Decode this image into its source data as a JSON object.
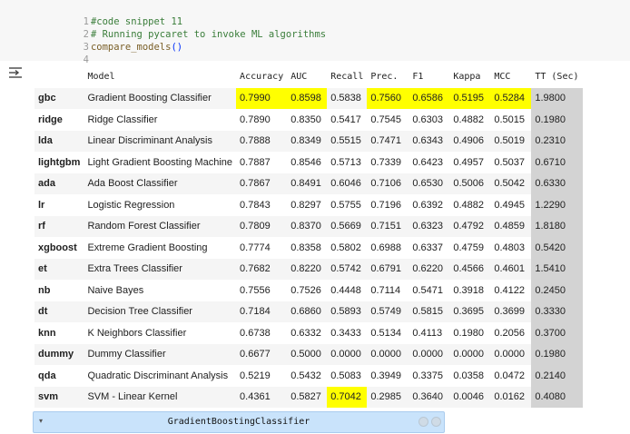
{
  "code": {
    "lines": [
      {
        "num": "1",
        "text": "#code snippet 11",
        "kind": "comment"
      },
      {
        "num": "2",
        "text": "# Running pycaret to invoke ML algorithms",
        "kind": "comment"
      },
      {
        "num": "3",
        "text_fn": "compare_models",
        "text_paren": "()",
        "kind": "call"
      },
      {
        "num": "4",
        "text": "",
        "kind": "empty"
      }
    ]
  },
  "output": {
    "icon": "output-expand-icon",
    "highlight_color": "#ffff00",
    "tt_column_color": "#d3d3d3"
  },
  "table": {
    "columns": [
      "",
      "Model",
      "Accuracy",
      "AUC",
      "Recall",
      "Prec.",
      "F1",
      "Kappa",
      "MCC",
      "TT (Sec)"
    ],
    "rows": [
      {
        "id": "gbc",
        "model": "Gradient Boosting Classifier",
        "accuracy": "0.7990",
        "auc": "0.8598",
        "recall": "0.5838",
        "prec": "0.7560",
        "f1": "0.6586",
        "kappa": "0.5195",
        "mcc": "0.5284",
        "tt": "1.9800"
      },
      {
        "id": "ridge",
        "model": "Ridge Classifier",
        "accuracy": "0.7890",
        "auc": "0.8350",
        "recall": "0.5417",
        "prec": "0.7545",
        "f1": "0.6303",
        "kappa": "0.4882",
        "mcc": "0.5015",
        "tt": "0.1980"
      },
      {
        "id": "lda",
        "model": "Linear Discriminant Analysis",
        "accuracy": "0.7888",
        "auc": "0.8349",
        "recall": "0.5515",
        "prec": "0.7471",
        "f1": "0.6343",
        "kappa": "0.4906",
        "mcc": "0.5019",
        "tt": "0.2310"
      },
      {
        "id": "lightgbm",
        "model": "Light Gradient Boosting Machine",
        "accuracy": "0.7887",
        "auc": "0.8546",
        "recall": "0.5713",
        "prec": "0.7339",
        "f1": "0.6423",
        "kappa": "0.4957",
        "mcc": "0.5037",
        "tt": "0.6710"
      },
      {
        "id": "ada",
        "model": "Ada Boost Classifier",
        "accuracy": "0.7867",
        "auc": "0.8491",
        "recall": "0.6046",
        "prec": "0.7106",
        "f1": "0.6530",
        "kappa": "0.5006",
        "mcc": "0.5042",
        "tt": "0.6330"
      },
      {
        "id": "lr",
        "model": "Logistic Regression",
        "accuracy": "0.7843",
        "auc": "0.8297",
        "recall": "0.5755",
        "prec": "0.7196",
        "f1": "0.6392",
        "kappa": "0.4882",
        "mcc": "0.4945",
        "tt": "1.2290"
      },
      {
        "id": "rf",
        "model": "Random Forest Classifier",
        "accuracy": "0.7809",
        "auc": "0.8370",
        "recall": "0.5669",
        "prec": "0.7151",
        "f1": "0.6323",
        "kappa": "0.4792",
        "mcc": "0.4859",
        "tt": "1.8180"
      },
      {
        "id": "xgboost",
        "model": "Extreme Gradient Boosting",
        "accuracy": "0.7774",
        "auc": "0.8358",
        "recall": "0.5802",
        "prec": "0.6988",
        "f1": "0.6337",
        "kappa": "0.4759",
        "mcc": "0.4803",
        "tt": "0.5420"
      },
      {
        "id": "et",
        "model": "Extra Trees Classifier",
        "accuracy": "0.7682",
        "auc": "0.8220",
        "recall": "0.5742",
        "prec": "0.6791",
        "f1": "0.6220",
        "kappa": "0.4566",
        "mcc": "0.4601",
        "tt": "1.5410"
      },
      {
        "id": "nb",
        "model": "Naive Bayes",
        "accuracy": "0.7556",
        "auc": "0.7526",
        "recall": "0.4448",
        "prec": "0.7114",
        "f1": "0.5471",
        "kappa": "0.3918",
        "mcc": "0.4122",
        "tt": "0.2450"
      },
      {
        "id": "dt",
        "model": "Decision Tree Classifier",
        "accuracy": "0.7184",
        "auc": "0.6860",
        "recall": "0.5893",
        "prec": "0.5749",
        "f1": "0.5815",
        "kappa": "0.3695",
        "mcc": "0.3699",
        "tt": "0.3330"
      },
      {
        "id": "knn",
        "model": "K Neighbors Classifier",
        "accuracy": "0.6738",
        "auc": "0.6332",
        "recall": "0.3433",
        "prec": "0.5134",
        "f1": "0.4113",
        "kappa": "0.1980",
        "mcc": "0.2056",
        "tt": "0.3700"
      },
      {
        "id": "dummy",
        "model": "Dummy Classifier",
        "accuracy": "0.6677",
        "auc": "0.5000",
        "recall": "0.0000",
        "prec": "0.0000",
        "f1": "0.0000",
        "kappa": "0.0000",
        "mcc": "0.0000",
        "tt": "0.1980"
      },
      {
        "id": "qda",
        "model": "Quadratic Discriminant Analysis",
        "accuracy": "0.5219",
        "auc": "0.5432",
        "recall": "0.5083",
        "prec": "0.3949",
        "f1": "0.3375",
        "kappa": "0.0358",
        "mcc": "0.0472",
        "tt": "0.2140"
      },
      {
        "id": "svm",
        "model": "SVM - Linear Kernel",
        "accuracy": "0.4361",
        "auc": "0.5827",
        "recall": "0.7042",
        "prec": "0.2985",
        "f1": "0.3640",
        "kappa": "0.0046",
        "mcc": "0.0162",
        "tt": "0.4080"
      }
    ],
    "highlights": [
      {
        "row": 0,
        "col": "accuracy"
      },
      {
        "row": 0,
        "col": "auc"
      },
      {
        "row": 0,
        "col": "prec"
      },
      {
        "row": 0,
        "col": "f1"
      },
      {
        "row": 0,
        "col": "kappa"
      },
      {
        "row": 0,
        "col": "mcc"
      },
      {
        "row": 14,
        "col": "recall"
      }
    ]
  },
  "estimator": {
    "label": "GradientBoostingClassifier",
    "arrow_icon": "collapse-arrow-icon",
    "help_icon": "question-circle-icon",
    "info_icon": "info-circle-icon"
  }
}
